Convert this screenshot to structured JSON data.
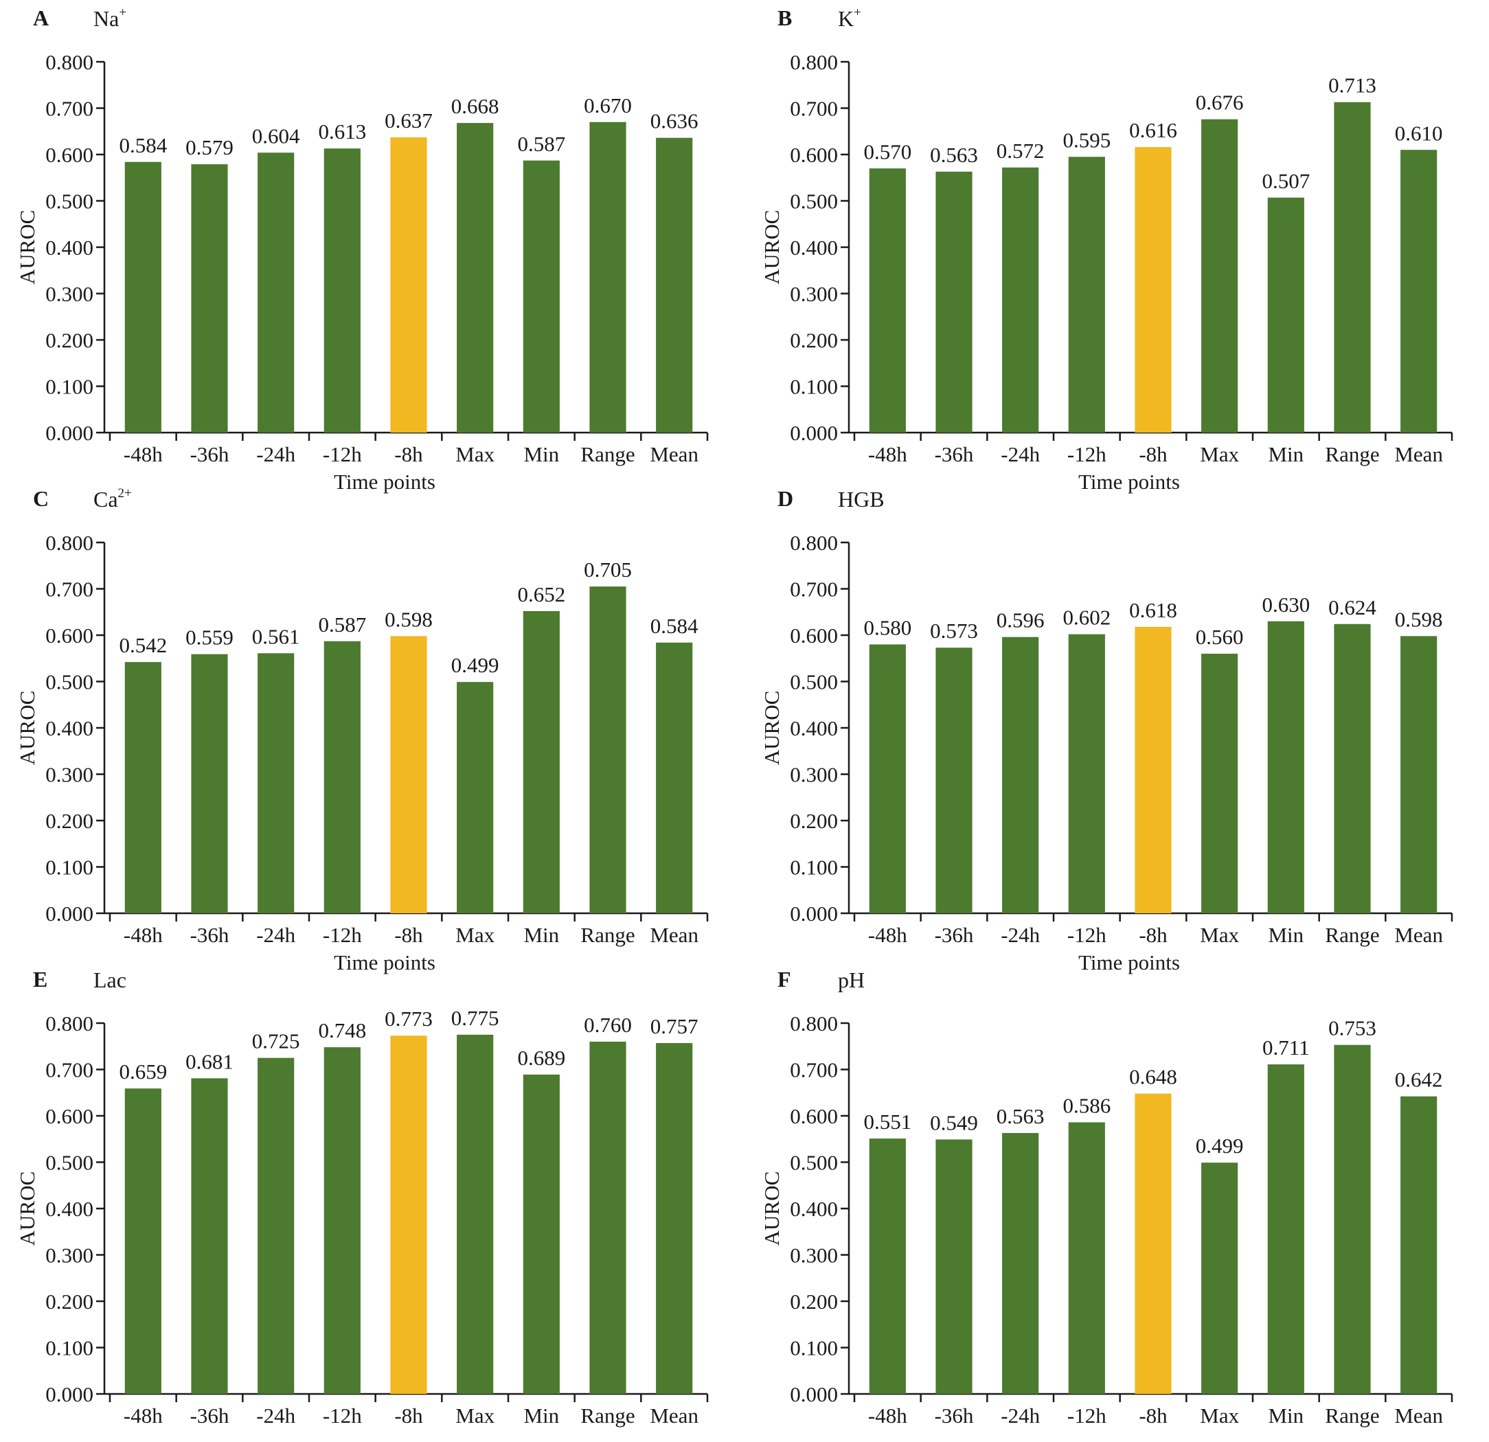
{
  "colors": {
    "bar": "#4c7a2f",
    "highlight": "#f2b822",
    "axis": "#1a1a1a"
  },
  "chart_data": [
    {
      "type": "bar",
      "panel_label": "A",
      "title": "Na",
      "title_sup": "+",
      "ylabel": "AUROC",
      "xlabel": "Time points",
      "ylim": [
        0,
        0.8
      ],
      "yticks": [
        "0.000",
        "0.100",
        "0.200",
        "0.300",
        "0.400",
        "0.500",
        "0.600",
        "0.700",
        "0.800"
      ],
      "categories": [
        "-48h",
        "-36h",
        "-24h",
        "-12h",
        "-8h",
        "Max",
        "Min",
        "Range",
        "Mean"
      ],
      "values": [
        0.584,
        0.579,
        0.604,
        0.613,
        0.637,
        0.668,
        0.587,
        0.67,
        0.636
      ],
      "value_labels": [
        "0.584",
        "0.579",
        "0.604",
        "0.613",
        "0.637",
        "0.668",
        "0.587",
        "0.670",
        "0.636"
      ],
      "highlight_index": 4
    },
    {
      "type": "bar",
      "panel_label": "B",
      "title": "K",
      "title_sup": "+",
      "ylabel": "AUROC",
      "xlabel": "Time points",
      "ylim": [
        0,
        0.8
      ],
      "yticks": [
        "0.000",
        "0.100",
        "0.200",
        "0.300",
        "0.400",
        "0.500",
        "0.600",
        "0.700",
        "0.800"
      ],
      "categories": [
        "-48h",
        "-36h",
        "-24h",
        "-12h",
        "-8h",
        "Max",
        "Min",
        "Range",
        "Mean"
      ],
      "values": [
        0.57,
        0.563,
        0.572,
        0.595,
        0.616,
        0.676,
        0.507,
        0.713,
        0.61
      ],
      "value_labels": [
        "0.570",
        "0.563",
        "0.572",
        "0.595",
        "0.616",
        "0.676",
        "0.507",
        "0.713",
        "0.610"
      ],
      "highlight_index": 4
    },
    {
      "type": "bar",
      "panel_label": "C",
      "title": "Ca",
      "title_sup": "2+",
      "ylabel": "AUROC",
      "xlabel": "Time points",
      "ylim": [
        0,
        0.8
      ],
      "yticks": [
        "0.000",
        "0.100",
        "0.200",
        "0.300",
        "0.400",
        "0.500",
        "0.600",
        "0.700",
        "0.800"
      ],
      "categories": [
        "-48h",
        "-36h",
        "-24h",
        "-12h",
        "-8h",
        "Max",
        "Min",
        "Range",
        "Mean"
      ],
      "values": [
        0.542,
        0.559,
        0.561,
        0.587,
        0.598,
        0.499,
        0.652,
        0.705,
        0.584
      ],
      "value_labels": [
        "0.542",
        "0.559",
        "0.561",
        "0.587",
        "0.598",
        "0.499",
        "0.652",
        "0.705",
        "0.584"
      ],
      "highlight_index": 4
    },
    {
      "type": "bar",
      "panel_label": "D",
      "title": "HGB",
      "title_sup": "",
      "ylabel": "AUROC",
      "xlabel": "Time points",
      "ylim": [
        0,
        0.8
      ],
      "yticks": [
        "0.000",
        "0.100",
        "0.200",
        "0.300",
        "0.400",
        "0.500",
        "0.600",
        "0.700",
        "0.800"
      ],
      "categories": [
        "-48h",
        "-36h",
        "-24h",
        "-12h",
        "-8h",
        "Max",
        "Min",
        "Range",
        "Mean"
      ],
      "values": [
        0.58,
        0.573,
        0.596,
        0.602,
        0.618,
        0.56,
        0.63,
        0.624,
        0.598
      ],
      "value_labels": [
        "0.580",
        "0.573",
        "0.596",
        "0.602",
        "0.618",
        "0.560",
        "0.630",
        "0.624",
        "0.598"
      ],
      "highlight_index": 4
    },
    {
      "type": "bar",
      "panel_label": "E",
      "title": "Lac",
      "title_sup": "",
      "ylabel": "AUROC",
      "xlabel": "",
      "ylim": [
        0,
        0.8
      ],
      "yticks": [
        "0.000",
        "0.100",
        "0.200",
        "0.300",
        "0.400",
        "0.500",
        "0.600",
        "0.700",
        "0.800"
      ],
      "categories": [
        "-48h",
        "-36h",
        "-24h",
        "-12h",
        "-8h",
        "Max",
        "Min",
        "Range",
        "Mean"
      ],
      "values": [
        0.659,
        0.681,
        0.725,
        0.748,
        0.773,
        0.775,
        0.689,
        0.76,
        0.757
      ],
      "value_labels": [
        "0.659",
        "0.681",
        "0.725",
        "0.748",
        "0.773",
        "0.775",
        "0.689",
        "0.760",
        "0.757"
      ],
      "highlight_index": 4
    },
    {
      "type": "bar",
      "panel_label": "F",
      "title": "pH",
      "title_sup": "",
      "ylabel": "AUROC",
      "xlabel": "",
      "ylim": [
        0,
        0.8
      ],
      "yticks": [
        "0.000",
        "0.100",
        "0.200",
        "0.300",
        "0.400",
        "0.500",
        "0.600",
        "0.700",
        "0.800"
      ],
      "categories": [
        "-48h",
        "-36h",
        "-24h",
        "-12h",
        "-8h",
        "Max",
        "Min",
        "Range",
        "Mean"
      ],
      "values": [
        0.551,
        0.549,
        0.563,
        0.586,
        0.648,
        0.499,
        0.711,
        0.753,
        0.642
      ],
      "value_labels": [
        "0.551",
        "0.549",
        "0.563",
        "0.586",
        "0.648",
        "0.499",
        "0.711",
        "0.753",
        "0.642"
      ],
      "highlight_index": 4
    }
  ]
}
